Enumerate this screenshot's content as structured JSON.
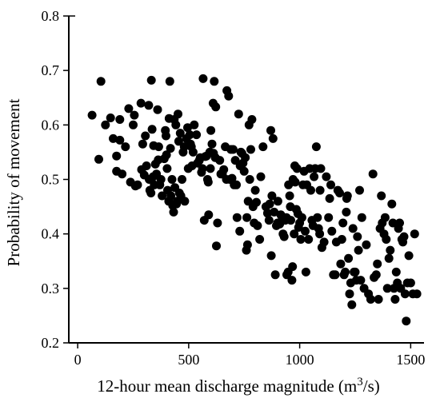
{
  "chart_data": {
    "type": "scatter",
    "xlabel": "12-hour mean discharge magnitude (m",
    "xlabel_sup": "3",
    "xlabel_suffix": "/s)",
    "ylabel": "Probability of movement",
    "xlim": [
      -40,
      1560
    ],
    "ylim": [
      0.2,
      0.8
    ],
    "xticks": [
      0,
      500,
      1000,
      1500
    ],
    "yticks": [
      0.2,
      0.3,
      0.4,
      0.5,
      0.6,
      0.7,
      0.8
    ],
    "grid": false,
    "point_color": "#000000",
    "points": [
      [
        65,
        0.618
      ],
      [
        95,
        0.537
      ],
      [
        105,
        0.68
      ],
      [
        125,
        0.6
      ],
      [
        148,
        0.613
      ],
      [
        160,
        0.575
      ],
      [
        175,
        0.543
      ],
      [
        175,
        0.515
      ],
      [
        190,
        0.61
      ],
      [
        190,
        0.572
      ],
      [
        200,
        0.51
      ],
      [
        215,
        0.56
      ],
      [
        230,
        0.63
      ],
      [
        238,
        0.495
      ],
      [
        250,
        0.6
      ],
      [
        255,
        0.618
      ],
      [
        260,
        0.488
      ],
      [
        270,
        0.49
      ],
      [
        285,
        0.64
      ],
      [
        288,
        0.518
      ],
      [
        293,
        0.565
      ],
      [
        300,
        0.508
      ],
      [
        305,
        0.58
      ],
      [
        310,
        0.525
      ],
      [
        320,
        0.636
      ],
      [
        322,
        0.5
      ],
      [
        325,
        0.48
      ],
      [
        330,
        0.475
      ],
      [
        332,
        0.682
      ],
      [
        335,
        0.592
      ],
      [
        340,
        0.505
      ],
      [
        342,
        0.562
      ],
      [
        345,
        0.49
      ],
      [
        350,
        0.528
      ],
      [
        355,
        0.51
      ],
      [
        360,
        0.628
      ],
      [
        363,
        0.536
      ],
      [
        365,
        0.56
      ],
      [
        370,
        0.49
      ],
      [
        375,
        0.5
      ],
      [
        380,
        0.47
      ],
      [
        390,
        0.538
      ],
      [
        395,
        0.59
      ],
      [
        398,
        0.58
      ],
      [
        400,
        0.545
      ],
      [
        403,
        0.52
      ],
      [
        405,
        0.48
      ],
      [
        410,
        0.46
      ],
      [
        412,
        0.612
      ],
      [
        415,
        0.68
      ],
      [
        418,
        0.557
      ],
      [
        420,
        0.47
      ],
      [
        425,
        0.5
      ],
      [
        428,
        0.452
      ],
      [
        432,
        0.44
      ],
      [
        435,
        0.61
      ],
      [
        438,
        0.485
      ],
      [
        442,
        0.6
      ],
      [
        445,
        0.455
      ],
      [
        448,
        0.46
      ],
      [
        452,
        0.62
      ],
      [
        455,
        0.57
      ],
      [
        458,
        0.475
      ],
      [
        462,
        0.585
      ],
      [
        465,
        0.47
      ],
      [
        470,
        0.5
      ],
      [
        475,
        0.55
      ],
      [
        480,
        0.56
      ],
      [
        482,
        0.46
      ],
      [
        490,
        0.575
      ],
      [
        495,
        0.595
      ],
      [
        498,
        0.52
      ],
      [
        505,
        0.582
      ],
      [
        508,
        0.565
      ],
      [
        512,
        0.56
      ],
      [
        515,
        0.525
      ],
      [
        520,
        0.55
      ],
      [
        525,
        0.6
      ],
      [
        535,
        0.582
      ],
      [
        540,
        0.53
      ],
      [
        548,
        0.535
      ],
      [
        552,
        0.54
      ],
      [
        558,
        0.513
      ],
      [
        562,
        0.52
      ],
      [
        565,
        0.685
      ],
      [
        570,
        0.425
      ],
      [
        575,
        0.542
      ],
      [
        580,
        0.543
      ],
      [
        585,
        0.5
      ],
      [
        588,
        0.495
      ],
      [
        590,
        0.435
      ],
      [
        595,
        0.55
      ],
      [
        598,
        0.52
      ],
      [
        600,
        0.59
      ],
      [
        605,
        0.565
      ],
      [
        610,
        0.64
      ],
      [
        612,
        0.548
      ],
      [
        615,
        0.68
      ],
      [
        620,
        0.54
      ],
      [
        622,
        0.633
      ],
      [
        625,
        0.378
      ],
      [
        630,
        0.42
      ],
      [
        640,
        0.535
      ],
      [
        645,
        0.51
      ],
      [
        652,
        0.51
      ],
      [
        658,
        0.518
      ],
      [
        665,
        0.56
      ],
      [
        670,
        0.5
      ],
      [
        672,
        0.663
      ],
      [
        680,
        0.653
      ],
      [
        685,
        0.5
      ],
      [
        690,
        0.555
      ],
      [
        695,
        0.502
      ],
      [
        700,
        0.555
      ],
      [
        705,
        0.49
      ],
      [
        710,
        0.535
      ],
      [
        715,
        0.49
      ],
      [
        718,
        0.43
      ],
      [
        725,
        0.62
      ],
      [
        730,
        0.405
      ],
      [
        732,
        0.525
      ],
      [
        735,
        0.55
      ],
      [
        740,
        0.548
      ],
      [
        745,
        0.53
      ],
      [
        750,
        0.515
      ],
      [
        755,
        0.54
      ],
      [
        760,
        0.37
      ],
      [
        762,
        0.43
      ],
      [
        765,
        0.38
      ],
      [
        768,
        0.46
      ],
      [
        772,
        0.6
      ],
      [
        775,
        0.5
      ],
      [
        780,
        0.555
      ],
      [
        785,
        0.61
      ],
      [
        790,
        0.45
      ],
      [
        795,
        0.42
      ],
      [
        800,
        0.48
      ],
      [
        805,
        0.458
      ],
      [
        810,
        0.415
      ],
      [
        820,
        0.39
      ],
      [
        825,
        0.505
      ],
      [
        835,
        0.56
      ],
      [
        848,
        0.45
      ],
      [
        855,
        0.438
      ],
      [
        862,
        0.425
      ],
      [
        865,
        0.455
      ],
      [
        870,
        0.59
      ],
      [
        872,
        0.36
      ],
      [
        875,
        0.47
      ],
      [
        880,
        0.575
      ],
      [
        885,
        0.44
      ],
      [
        890,
        0.325
      ],
      [
        895,
        0.415
      ],
      [
        900,
        0.42
      ],
      [
        902,
        0.46
      ],
      [
        910,
        0.418
      ],
      [
        915,
        0.435
      ],
      [
        920,
        0.432
      ],
      [
        925,
        0.4
      ],
      [
        930,
        0.395
      ],
      [
        935,
        0.425
      ],
      [
        940,
        0.43
      ],
      [
        942,
        0.325
      ],
      [
        948,
        0.33
      ],
      [
        950,
        0.49
      ],
      [
        955,
        0.47
      ],
      [
        958,
        0.45
      ],
      [
        960,
        0.425
      ],
      [
        965,
        0.315
      ],
      [
        968,
        0.34
      ],
      [
        970,
        0.5
      ],
      [
        975,
        0.4
      ],
      [
        978,
        0.525
      ],
      [
        980,
        0.495
      ],
      [
        985,
        0.445
      ],
      [
        988,
        0.52
      ],
      [
        992,
        0.437
      ],
      [
        995,
        0.412
      ],
      [
        1000,
        0.42
      ],
      [
        1005,
        0.39
      ],
      [
        1010,
        0.43
      ],
      [
        1015,
        0.49
      ],
      [
        1020,
        0.515
      ],
      [
        1025,
        0.405
      ],
      [
        1028,
        0.33
      ],
      [
        1032,
        0.49
      ],
      [
        1040,
        0.39
      ],
      [
        1045,
        0.52
      ],
      [
        1050,
        0.48
      ],
      [
        1055,
        0.425
      ],
      [
        1060,
        0.415
      ],
      [
        1065,
        0.505
      ],
      [
        1070,
        0.52
      ],
      [
        1075,
        0.56
      ],
      [
        1080,
        0.43
      ],
      [
        1085,
        0.41
      ],
      [
        1090,
        0.4
      ],
      [
        1092,
        0.48
      ],
      [
        1095,
        0.52
      ],
      [
        1100,
        0.375
      ],
      [
        1110,
        0.385
      ],
      [
        1120,
        0.505
      ],
      [
        1130,
        0.43
      ],
      [
        1135,
        0.465
      ],
      [
        1140,
        0.49
      ],
      [
        1145,
        0.405
      ],
      [
        1152,
        0.325
      ],
      [
        1160,
        0.325
      ],
      [
        1165,
        0.385
      ],
      [
        1172,
        0.48
      ],
      [
        1180,
        0.475
      ],
      [
        1185,
        0.345
      ],
      [
        1190,
        0.39
      ],
      [
        1195,
        0.42
      ],
      [
        1200,
        0.325
      ],
      [
        1205,
        0.33
      ],
      [
        1210,
        0.44
      ],
      [
        1212,
        0.465
      ],
      [
        1215,
        0.47
      ],
      [
        1220,
        0.355
      ],
      [
        1225,
        0.29
      ],
      [
        1230,
        0.31
      ],
      [
        1235,
        0.27
      ],
      [
        1240,
        0.41
      ],
      [
        1245,
        0.33
      ],
      [
        1250,
        0.33
      ],
      [
        1255,
        0.315
      ],
      [
        1260,
        0.395
      ],
      [
        1265,
        0.37
      ],
      [
        1270,
        0.48
      ],
      [
        1275,
        0.315
      ],
      [
        1280,
        0.43
      ],
      [
        1290,
        0.3
      ],
      [
        1300,
        0.38
      ],
      [
        1310,
        0.29
      ],
      [
        1320,
        0.28
      ],
      [
        1330,
        0.51
      ],
      [
        1335,
        0.32
      ],
      [
        1345,
        0.325
      ],
      [
        1350,
        0.345
      ],
      [
        1355,
        0.28
      ],
      [
        1362,
        0.41
      ],
      [
        1368,
        0.47
      ],
      [
        1372,
        0.42
      ],
      [
        1380,
        0.4
      ],
      [
        1385,
        0.43
      ],
      [
        1390,
        0.39
      ],
      [
        1395,
        0.3
      ],
      [
        1402,
        0.355
      ],
      [
        1408,
        0.37
      ],
      [
        1415,
        0.455
      ],
      [
        1420,
        0.42
      ],
      [
        1425,
        0.3
      ],
      [
        1430,
        0.28
      ],
      [
        1435,
        0.33
      ],
      [
        1440,
        0.31
      ],
      [
        1445,
        0.41
      ],
      [
        1450,
        0.42
      ],
      [
        1455,
        0.3
      ],
      [
        1460,
        0.39
      ],
      [
        1465,
        0.385
      ],
      [
        1470,
        0.395
      ],
      [
        1475,
        0.29
      ],
      [
        1480,
        0.24
      ],
      [
        1485,
        0.31
      ],
      [
        1492,
        0.36
      ],
      [
        1500,
        0.31
      ],
      [
        1510,
        0.29
      ],
      [
        1518,
        0.4
      ],
      [
        1528,
        0.29
      ]
    ]
  }
}
